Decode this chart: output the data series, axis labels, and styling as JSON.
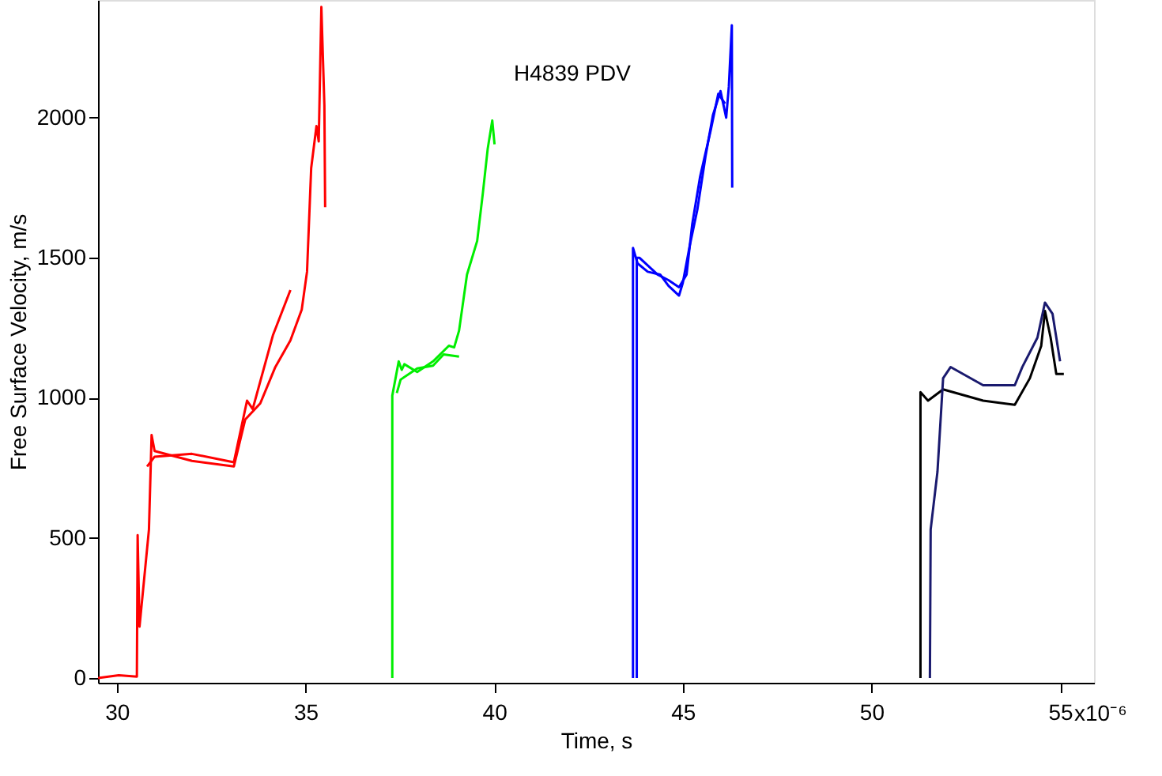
{
  "chart_data": {
    "type": "line",
    "xlabel": "Time, s",
    "ylabel": "Free Surface Velocity, m/s",
    "annotations": [
      "H4839 PDV",
      "x10⁻⁶"
    ],
    "xlim": [
      29.5,
      55.9
    ],
    "ylim": [
      -17,
      2420
    ],
    "xticks": [
      30,
      35,
      40,
      45,
      50,
      55
    ],
    "yticks": [
      0,
      500,
      1000,
      1500,
      2000
    ],
    "grid": false,
    "legend": false,
    "marker": "none",
    "line_style": "solid",
    "series": [
      {
        "color": "#ff0000",
        "x": [
          29.5,
          30.05,
          30.53,
          30.55,
          30.6,
          30.85,
          30.92,
          31.0,
          31.99,
          33.1,
          33.4,
          33.8,
          34.2,
          34.6,
          34.9,
          35.04,
          35.15,
          35.29,
          35.35,
          35.42,
          35.5,
          35.52
        ],
        "values": [
          0,
          10,
          5,
          510,
          183,
          530,
          867,
          810,
          775,
          755,
          922,
          980,
          1110,
          1205,
          1315,
          1450,
          1820,
          1970,
          1915,
          2395,
          2045,
          1680
        ]
      },
      {
        "color": "#ff0000",
        "x": [
          30.8,
          31.0,
          31.99,
          33.1,
          33.45,
          33.6,
          34.14,
          34.6
        ],
        "values": [
          755,
          790,
          800,
          770,
          990,
          960,
          1225,
          1385
        ]
      },
      {
        "color": "#00ee00",
        "x": [
          37.3,
          37.3,
          37.47,
          37.55,
          37.62,
          37.96,
          38.38,
          38.8,
          38.94,
          39.07,
          39.28,
          39.55,
          39.7,
          39.83,
          39.95,
          40.01
        ],
        "values": [
          0,
          1008,
          1130,
          1100,
          1120,
          1092,
          1130,
          1186,
          1180,
          1240,
          1440,
          1560,
          1730,
          1890,
          1990,
          1905
        ]
      },
      {
        "color": "#00ee00",
        "x": [
          37.42,
          37.52,
          37.96,
          38.38,
          38.66,
          39.07
        ],
        "values": [
          1017,
          1065,
          1105,
          1115,
          1155,
          1147
        ]
      },
      {
        "color": "#0000ff",
        "x": [
          43.68,
          43.68,
          43.8,
          44.07,
          44.4,
          44.62,
          44.9,
          45.0,
          45.18,
          45.39,
          45.6,
          45.8,
          46.0,
          46.15,
          46.22,
          46.3,
          46.31
        ],
        "values": [
          0,
          1535,
          1480,
          1450,
          1440,
          1400,
          1365,
          1410,
          1540,
          1675,
          1860,
          2010,
          2095,
          2000,
          2110,
          2330,
          1750
        ]
      },
      {
        "color": "#0000ff",
        "x": [
          43.78,
          43.78,
          43.85,
          44.33,
          44.62,
          44.9,
          45.1,
          45.25,
          45.46,
          45.74,
          45.94,
          46.12
        ],
        "values": [
          0,
          1500,
          1500,
          1440,
          1420,
          1395,
          1440,
          1620,
          1790,
          1955,
          2085,
          2050
        ]
      },
      {
        "color": "#000000",
        "x": [
          51.3,
          51.3,
          51.5,
          51.9,
          52.96,
          53.8,
          54.2,
          54.5,
          54.6,
          54.75,
          54.9,
          55.1
        ],
        "values": [
          0,
          1020,
          990,
          1030,
          990,
          975,
          1070,
          1185,
          1310,
          1215,
          1085,
          1085
        ]
      },
      {
        "color": "#1a1a6e",
        "x": [
          51.55,
          51.57,
          51.75,
          51.9,
          52.1,
          52.96,
          53.8,
          54.0,
          54.4,
          54.6,
          54.8,
          55.0
        ],
        "values": [
          0,
          530,
          736,
          1070,
          1110,
          1045,
          1045,
          1110,
          1215,
          1340,
          1300,
          1130
        ]
      }
    ]
  }
}
